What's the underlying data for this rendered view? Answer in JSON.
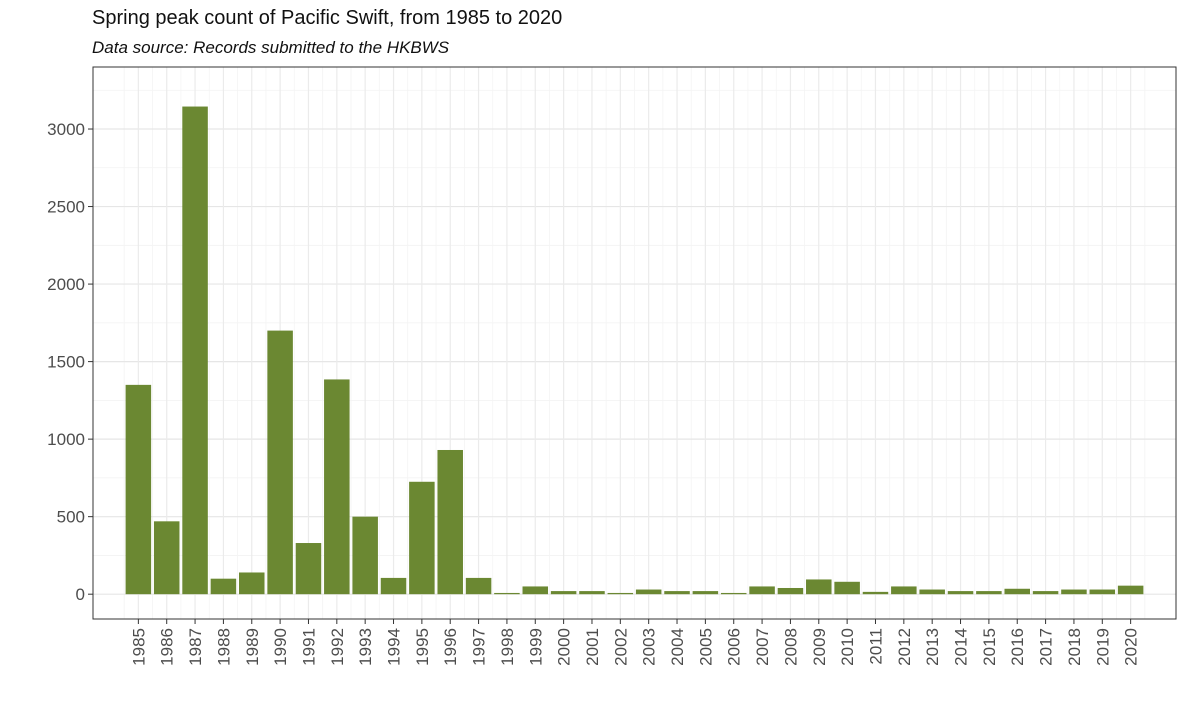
{
  "chart_data": {
    "type": "bar",
    "title": "Spring peak count of Pacific Swift, from 1985 to 2020",
    "subtitle": "Data source: Records submitted to the HKBWS",
    "xlabel": "",
    "ylabel": "",
    "categories": [
      "1985",
      "1986",
      "1987",
      "1988",
      "1989",
      "1990",
      "1991",
      "1992",
      "1993",
      "1994",
      "1995",
      "1996",
      "1997",
      "1998",
      "1999",
      "2000",
      "2001",
      "2002",
      "2003",
      "2004",
      "2005",
      "2006",
      "2007",
      "2008",
      "2009",
      "2010",
      "2011",
      "2012",
      "2013",
      "2014",
      "2015",
      "2016",
      "2017",
      "2018",
      "2019",
      "2020"
    ],
    "values": [
      1350,
      470,
      3145,
      100,
      140,
      1700,
      330,
      1385,
      500,
      105,
      725,
      930,
      105,
      8,
      50,
      20,
      20,
      8,
      30,
      20,
      20,
      8,
      50,
      40,
      95,
      80,
      15,
      50,
      30,
      20,
      20,
      35,
      20,
      30,
      30,
      55
    ],
    "ylim": [
      -160,
      3400
    ],
    "yticks": [
      0,
      500,
      1000,
      1500,
      2000,
      2500,
      3000
    ],
    "bar_color": "#6b8832",
    "grid": true,
    "legend": "none"
  }
}
